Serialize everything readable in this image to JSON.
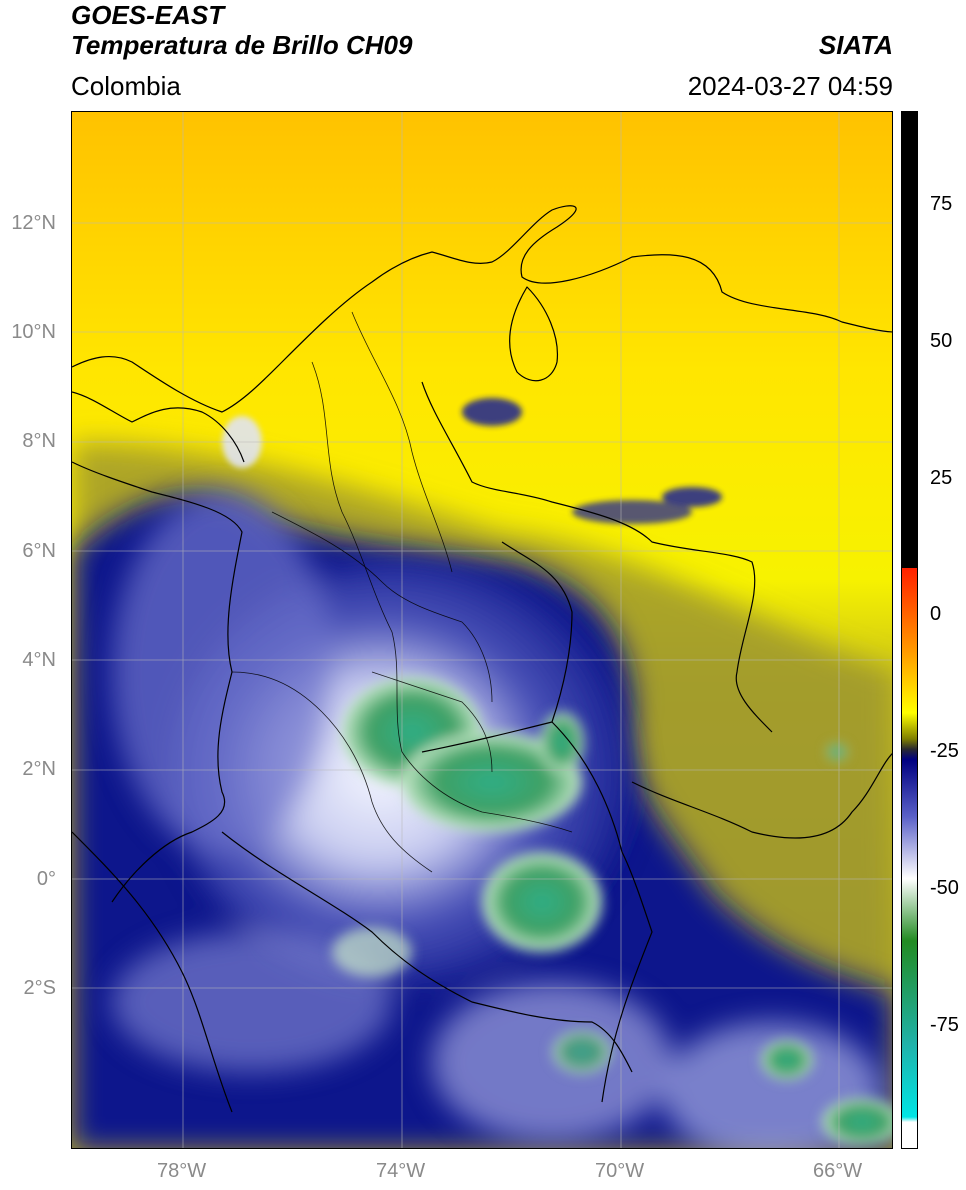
{
  "header": {
    "satellite": "GOES-EAST",
    "product": "Temperatura de Brillo CH09",
    "region": "Colombia",
    "agency": "SIATA",
    "timestamp": "2024-03-27 04:59"
  },
  "map": {
    "lat_labels": [
      "12°N",
      "10°N",
      "8°N",
      "6°N",
      "4°N",
      "2°N",
      "0°",
      "2°S"
    ],
    "lon_labels": [
      "78°W",
      "74°W",
      "70°W",
      "66°W"
    ]
  },
  "colorbar": {
    "tick_labels": [
      "75",
      "50",
      "25",
      "0",
      "-25",
      "-50",
      "-75"
    ],
    "colors": {
      "black": "#000000",
      "red": "#ff2000",
      "orange": "#ff9900",
      "yellow": "#ffff00",
      "olive": "#808000",
      "navy": "#000080",
      "white": "#ffffff",
      "green": "#228b22",
      "teal": "#20b2aa",
      "cyan": "#00e5e5"
    }
  }
}
